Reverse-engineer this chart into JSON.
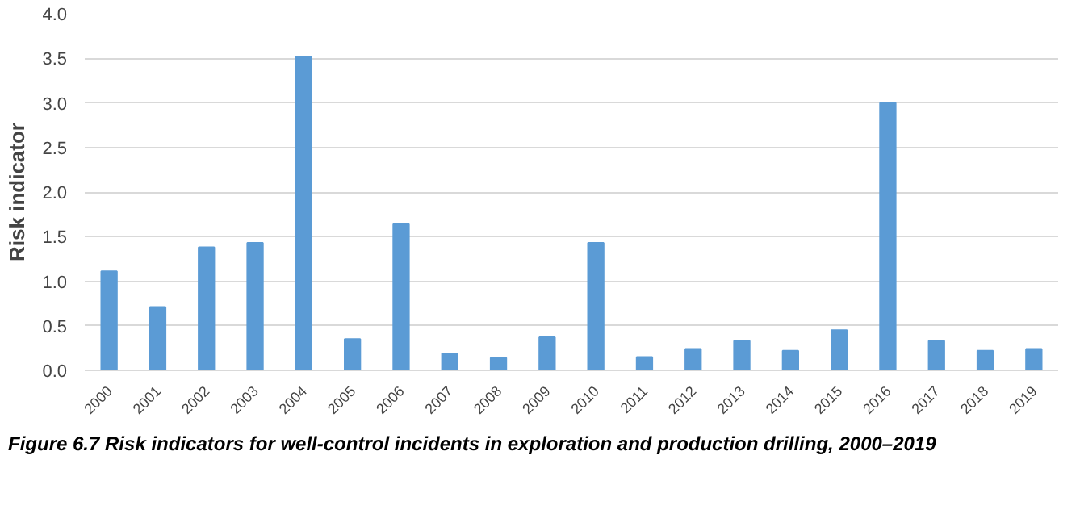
{
  "chart_data": {
    "type": "bar",
    "ylabel": "Risk indicator",
    "categories": [
      "2000",
      "2001",
      "2002",
      "2003",
      "2004",
      "2005",
      "2006",
      "2007",
      "2008",
      "2009",
      "2010",
      "2011",
      "2012",
      "2013",
      "2014",
      "2015",
      "2016",
      "2017",
      "2018",
      "2019"
    ],
    "values": [
      1.11,
      0.71,
      1.38,
      1.43,
      3.52,
      0.35,
      1.64,
      0.19,
      0.14,
      0.37,
      1.43,
      0.15,
      0.24,
      0.33,
      0.22,
      0.45,
      3.0,
      0.33,
      0.22,
      0.24
    ],
    "color": "#5b9bd5",
    "ylim": [
      0,
      4
    ],
    "yticks": [
      {
        "value": 0,
        "label": "0.0"
      },
      {
        "value": 0.5,
        "label": "0.5"
      },
      {
        "value": 1,
        "label": "1.0"
      },
      {
        "value": 1.5,
        "label": "1.5"
      },
      {
        "value": 2,
        "label": "2.0"
      },
      {
        "value": 2.5,
        "label": "2.5"
      },
      {
        "value": 3,
        "label": "3.0"
      },
      {
        "value": 3.5,
        "label": "3.5"
      },
      {
        "value": 4,
        "label": "4.0"
      }
    ],
    "grid": "y",
    "annotations": [
      "Figure 6.7    Risk indicators for well-control incidents in exploration and production drilling, 2000–2019"
    ]
  }
}
